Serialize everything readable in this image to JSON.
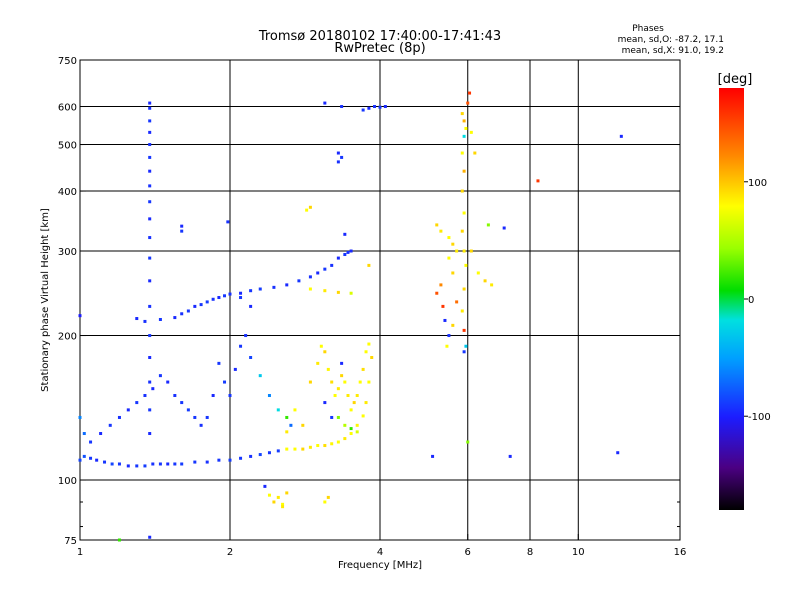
{
  "header": {
    "title": "Tromsø 20180102 17:40:00-17:41:43",
    "subtitle": "RwPretec (8p)",
    "phases_label": "Phases",
    "phases_o": "mean, sd,O: -87.2, 17.1",
    "phases_x": "mean, sd,X:  91.0, 19.2"
  },
  "colorbar": {
    "unit": "[deg]",
    "range": [
      -180,
      180
    ],
    "ticks": [
      {
        "value": 100,
        "label": "100"
      },
      {
        "value": 0,
        "label": "0"
      },
      {
        "value": -100,
        "label": "-100"
      }
    ]
  },
  "chart_data": {
    "type": "scatter",
    "title": "Tromsø 20180102 17:40:00-17:41:43",
    "subtitle": "RwPretec (8p)",
    "xlabel": "Frequency [MHz]",
    "ylabel": "Stationary phase Virtual Height [km]",
    "x_scale": "log",
    "y_scale": "log",
    "xlim": [
      1,
      16
    ],
    "ylim": [
      75,
      750
    ],
    "grid": true,
    "xticks": [
      {
        "value": 1,
        "label": "1"
      },
      {
        "value": 2,
        "label": "2"
      },
      {
        "value": 4,
        "label": "4"
      },
      {
        "value": 6,
        "label": "6"
      },
      {
        "value": 8,
        "label": "8"
      },
      {
        "value": 10,
        "label": "10"
      },
      {
        "value": 16,
        "label": "16"
      }
    ],
    "yticks": [
      {
        "value": 75,
        "label": "75"
      },
      {
        "value": 100,
        "label": "100"
      },
      {
        "value": 200,
        "label": "200"
      },
      {
        "value": 300,
        "label": "300"
      },
      {
        "value": 400,
        "label": "400"
      },
      {
        "value": 500,
        "label": "500"
      },
      {
        "value": 600,
        "label": "600"
      },
      {
        "value": 750,
        "label": "750"
      }
    ],
    "color_by": "phase (deg)",
    "points": [
      [
        1.0,
        110,
        -85
      ],
      [
        1.02,
        112,
        -80
      ],
      [
        1.05,
        111,
        -90
      ],
      [
        1.08,
        110,
        -95
      ],
      [
        1.12,
        109,
        -90
      ],
      [
        1.16,
        108,
        -85
      ],
      [
        1.2,
        108,
        -90
      ],
      [
        1.25,
        107,
        -95
      ],
      [
        1.3,
        107,
        -90
      ],
      [
        1.35,
        107,
        -88
      ],
      [
        1.4,
        108,
        -92
      ],
      [
        1.45,
        108,
        -90
      ],
      [
        1.5,
        108,
        -95
      ],
      [
        1.55,
        108,
        -90
      ],
      [
        1.6,
        108,
        -88
      ],
      [
        1.7,
        109,
        -90
      ],
      [
        1.8,
        109,
        -92
      ],
      [
        1.9,
        110,
        -90
      ],
      [
        2.0,
        110,
        -88
      ],
      [
        2.1,
        111,
        -90
      ],
      [
        2.2,
        112,
        -92
      ],
      [
        2.3,
        113,
        -85
      ],
      [
        2.4,
        114,
        -90
      ],
      [
        2.5,
        115,
        -88
      ],
      [
        2.6,
        116,
        100
      ],
      [
        2.7,
        116,
        100
      ],
      [
        2.8,
        116,
        110
      ],
      [
        2.9,
        117,
        105
      ],
      [
        3.0,
        118,
        100
      ],
      [
        3.1,
        118,
        108
      ],
      [
        3.2,
        119,
        102
      ],
      [
        3.3,
        120,
        100
      ],
      [
        3.4,
        122,
        105
      ],
      [
        3.5,
        125,
        100
      ],
      [
        3.6,
        130,
        102
      ],
      [
        3.7,
        136,
        100
      ],
      [
        3.75,
        145,
        105
      ],
      [
        3.8,
        160,
        100
      ],
      [
        3.85,
        180,
        110
      ],
      [
        3.8,
        192,
        100
      ],
      [
        1.0,
        220,
        -100
      ],
      [
        1.0,
        135,
        -60
      ],
      [
        1.02,
        125,
        -70
      ],
      [
        1.05,
        120,
        -90
      ],
      [
        1.1,
        125,
        -95
      ],
      [
        1.15,
        130,
        -90
      ],
      [
        1.2,
        135,
        -92
      ],
      [
        1.25,
        140,
        -95
      ],
      [
        1.3,
        145,
        -90
      ],
      [
        1.35,
        150,
        -92
      ],
      [
        1.4,
        155,
        -95
      ],
      [
        1.45,
        165,
        -90
      ],
      [
        1.5,
        160,
        -95
      ],
      [
        1.55,
        150,
        -92
      ],
      [
        1.6,
        145,
        -90
      ],
      [
        1.65,
        140,
        -88
      ],
      [
        1.7,
        135,
        -90
      ],
      [
        1.75,
        130,
        -92
      ],
      [
        1.8,
        135,
        -90
      ],
      [
        1.85,
        150,
        -95
      ],
      [
        1.9,
        175,
        -90
      ],
      [
        1.95,
        160,
        -88
      ],
      [
        2.0,
        150,
        -90
      ],
      [
        2.05,
        170,
        -95
      ],
      [
        2.1,
        190,
        -90
      ],
      [
        2.15,
        200,
        -92
      ],
      [
        2.2,
        230,
        -95
      ],
      [
        2.1,
        240,
        -90
      ],
      [
        2.2,
        180,
        -85
      ],
      [
        2.3,
        165,
        -30
      ],
      [
        2.4,
        150,
        -60
      ],
      [
        2.5,
        140,
        -20
      ],
      [
        2.6,
        135,
        20
      ],
      [
        2.65,
        130,
        -70
      ],
      [
        1.3,
        217,
        -95
      ],
      [
        1.35,
        214,
        -92
      ],
      [
        1.45,
        216,
        -90
      ],
      [
        1.55,
        218,
        -95
      ],
      [
        1.6,
        222,
        -92
      ],
      [
        1.65,
        225,
        -90
      ],
      [
        1.7,
        230,
        -95
      ],
      [
        1.75,
        232,
        -90
      ],
      [
        1.8,
        235,
        -88
      ],
      [
        1.85,
        238,
        -92
      ],
      [
        1.9,
        240,
        -95
      ],
      [
        1.95,
        242,
        -90
      ],
      [
        2.0,
        244,
        -92
      ],
      [
        2.1,
        245,
        -95
      ],
      [
        2.2,
        248,
        -90
      ],
      [
        2.3,
        250,
        -88
      ],
      [
        2.45,
        252,
        -92
      ],
      [
        2.6,
        255,
        -95
      ],
      [
        2.75,
        260,
        -90
      ],
      [
        2.9,
        265,
        -92
      ],
      [
        3.0,
        270,
        -95
      ],
      [
        3.1,
        275,
        -90
      ],
      [
        3.2,
        280,
        -92
      ],
      [
        3.3,
        290,
        -95
      ],
      [
        3.4,
        295,
        -90
      ],
      [
        3.45,
        298,
        -92
      ],
      [
        3.5,
        300,
        -95
      ],
      [
        2.9,
        250,
        100
      ],
      [
        3.1,
        248,
        105
      ],
      [
        3.3,
        246,
        110
      ],
      [
        3.5,
        245,
        80
      ],
      [
        2.9,
        160,
        110
      ],
      [
        3.0,
        175,
        105
      ],
      [
        3.05,
        190,
        100
      ],
      [
        3.1,
        185,
        110
      ],
      [
        3.15,
        170,
        102
      ],
      [
        3.2,
        160,
        108
      ],
      [
        3.25,
        150,
        100
      ],
      [
        3.3,
        155,
        105
      ],
      [
        3.35,
        165,
        110
      ],
      [
        3.4,
        160,
        100
      ],
      [
        3.45,
        150,
        105
      ],
      [
        3.5,
        140,
        100
      ],
      [
        3.55,
        145,
        110
      ],
      [
        3.6,
        150,
        105
      ],
      [
        3.65,
        160,
        100
      ],
      [
        3.7,
        170,
        108
      ],
      [
        3.75,
        185,
        100
      ],
      [
        3.3,
        135,
        40
      ],
      [
        3.4,
        130,
        60
      ],
      [
        3.5,
        128,
        20
      ],
      [
        3.6,
        126,
        80
      ],
      [
        3.1,
        145,
        -95
      ],
      [
        3.2,
        135,
        -90
      ],
      [
        3.35,
        175,
        -95
      ],
      [
        2.7,
        140,
        100
      ],
      [
        2.8,
        130,
        110
      ],
      [
        2.6,
        126,
        105
      ],
      [
        2.4,
        93,
        100
      ],
      [
        2.45,
        90,
        110
      ],
      [
        2.5,
        92,
        105
      ],
      [
        2.55,
        89,
        100
      ],
      [
        2.6,
        94,
        110
      ],
      [
        2.55,
        88,
        105
      ],
      [
        3.1,
        90,
        100
      ],
      [
        3.15,
        92,
        110
      ],
      [
        2.35,
        97,
        -95
      ],
      [
        1.38,
        76,
        -95
      ],
      [
        1.2,
        75,
        20
      ],
      [
        1.38,
        610,
        -95
      ],
      [
        1.38,
        595,
        -92
      ],
      [
        1.38,
        560,
        -90
      ],
      [
        1.38,
        530,
        -95
      ],
      [
        1.38,
        500,
        -92
      ],
      [
        1.38,
        470,
        -90
      ],
      [
        1.38,
        440,
        -95
      ],
      [
        1.38,
        410,
        -92
      ],
      [
        1.38,
        380,
        -90
      ],
      [
        1.38,
        350,
        -95
      ],
      [
        1.38,
        320,
        -92
      ],
      [
        1.38,
        290,
        -90
      ],
      [
        1.38,
        260,
        -95
      ],
      [
        1.38,
        230,
        -92
      ],
      [
        1.38,
        200,
        -90
      ],
      [
        1.38,
        180,
        -95
      ],
      [
        1.38,
        160,
        -92
      ],
      [
        1.38,
        140,
        -90
      ],
      [
        1.38,
        125,
        -95
      ],
      [
        1.6,
        338,
        -95
      ],
      [
        1.6,
        330,
        -90
      ],
      [
        1.98,
        345,
        -92
      ],
      [
        2.9,
        370,
        110
      ],
      [
        2.85,
        365,
        100
      ],
      [
        3.4,
        325,
        -95
      ],
      [
        3.3,
        480,
        -95
      ],
      [
        3.3,
        460,
        -92
      ],
      [
        3.35,
        470,
        -90
      ],
      [
        3.1,
        610,
        -95
      ],
      [
        3.35,
        600,
        -92
      ],
      [
        3.7,
        590,
        -90
      ],
      [
        3.8,
        595,
        -95
      ],
      [
        3.9,
        600,
        -92
      ],
      [
        4.0,
        598,
        -90
      ],
      [
        4.1,
        600,
        -95
      ],
      [
        3.8,
        280,
        110
      ],
      [
        5.2,
        340,
        110
      ],
      [
        5.3,
        330,
        105
      ],
      [
        5.5,
        320,
        100
      ],
      [
        5.6,
        310,
        110
      ],
      [
        5.7,
        300,
        105
      ],
      [
        5.5,
        290,
        100
      ],
      [
        5.6,
        270,
        110
      ],
      [
        5.3,
        255,
        130
      ],
      [
        5.2,
        245,
        150
      ],
      [
        5.35,
        230,
        160
      ],
      [
        5.4,
        215,
        -95
      ],
      [
        5.5,
        200,
        -92
      ],
      [
        5.45,
        190,
        100
      ],
      [
        5.6,
        210,
        110
      ],
      [
        5.7,
        235,
        140
      ],
      [
        5.85,
        580,
        110
      ],
      [
        5.9,
        560,
        120
      ],
      [
        5.95,
        540,
        100
      ],
      [
        5.9,
        520,
        -20
      ],
      [
        5.85,
        480,
        100
      ],
      [
        5.9,
        440,
        120
      ],
      [
        5.85,
        400,
        110
      ],
      [
        5.9,
        360,
        100
      ],
      [
        5.85,
        330,
        110
      ],
      [
        5.9,
        300,
        105
      ],
      [
        5.95,
        280,
        100
      ],
      [
        5.9,
        250,
        110
      ],
      [
        5.85,
        225,
        105
      ],
      [
        5.9,
        205,
        160
      ],
      [
        5.95,
        190,
        -30
      ],
      [
        5.9,
        185,
        -90
      ],
      [
        6.0,
        610,
        150
      ],
      [
        6.05,
        640,
        160
      ],
      [
        6.1,
        530,
        100
      ],
      [
        6.2,
        480,
        110
      ],
      [
        6.1,
        300,
        110
      ],
      [
        6.3,
        270,
        100
      ],
      [
        6.5,
        260,
        110
      ],
      [
        6.7,
        255,
        105
      ],
      [
        6.6,
        340,
        40
      ],
      [
        7.1,
        335,
        -95
      ],
      [
        8.3,
        420,
        160
      ],
      [
        12.2,
        520,
        -95
      ],
      [
        12.0,
        114,
        -95
      ],
      [
        7.3,
        112,
        -95
      ],
      [
        6.0,
        120,
        40
      ],
      [
        5.1,
        112,
        -95
      ]
    ]
  }
}
